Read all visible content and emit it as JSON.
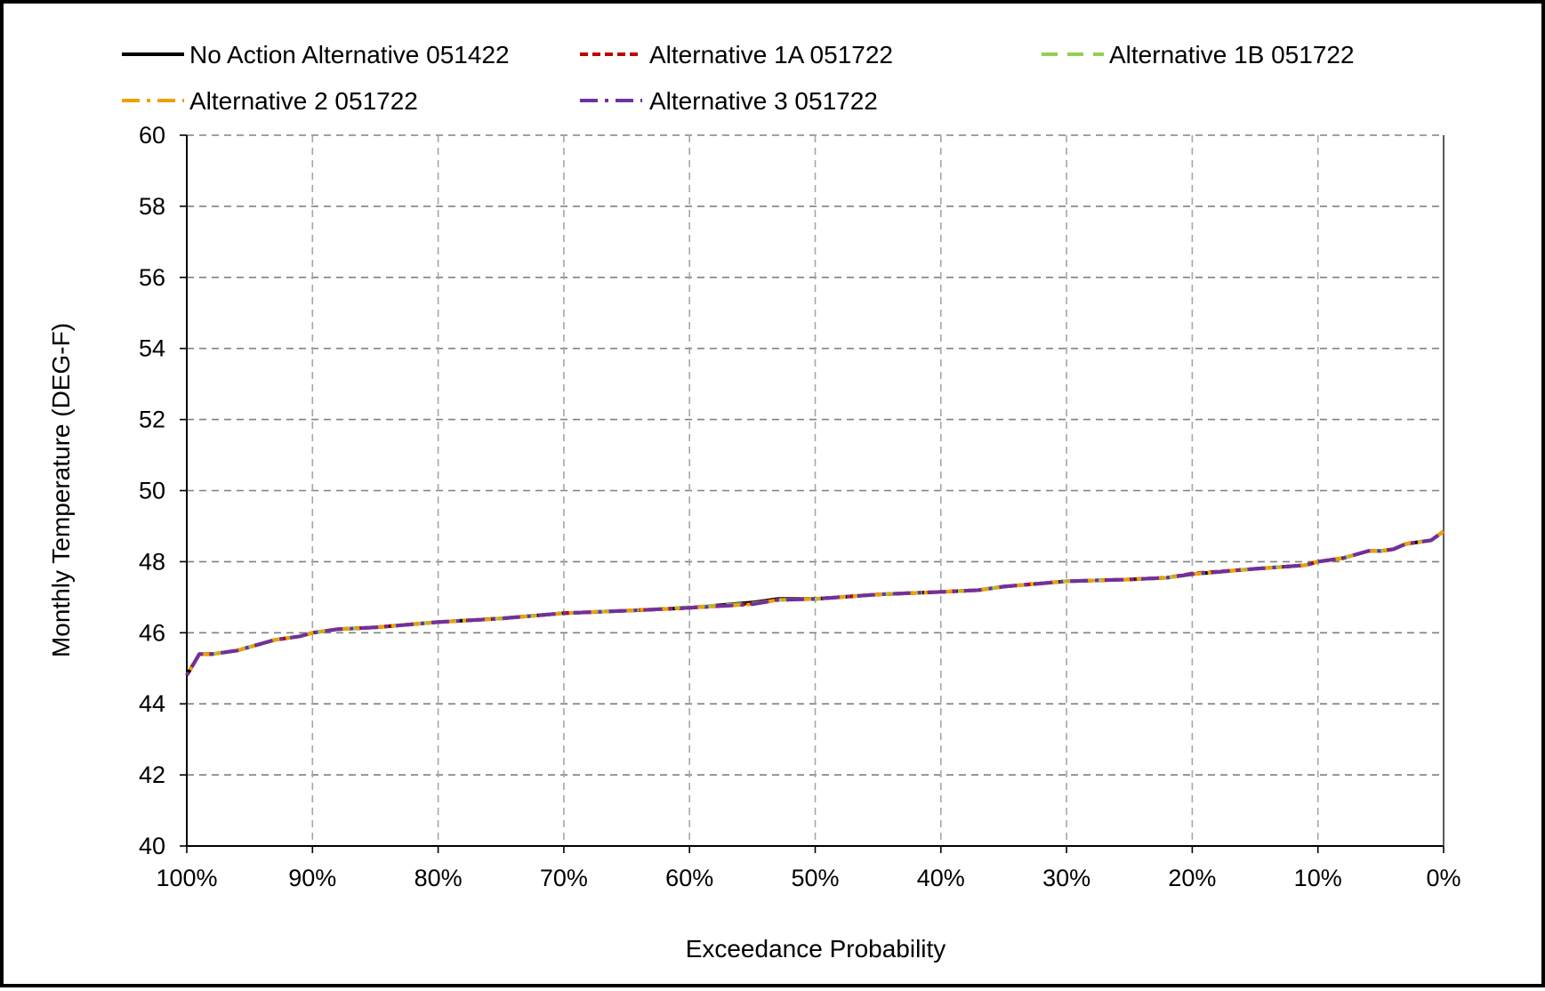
{
  "chart_data": {
    "type": "line",
    "title": "",
    "xlabel": "Exceedance Probability",
    "ylabel": "Monthly Temperature (DEG-F)",
    "xlim": [
      100,
      0
    ],
    "ylim": [
      40,
      60
    ],
    "x_ticks": [
      100,
      90,
      80,
      70,
      60,
      50,
      40,
      30,
      20,
      10,
      0
    ],
    "x_tick_labels": [
      "100%",
      "90%",
      "80%",
      "70%",
      "60%",
      "50%",
      "40%",
      "30%",
      "20%",
      "10%",
      "0%"
    ],
    "y_ticks": [
      40,
      42,
      44,
      46,
      48,
      50,
      52,
      54,
      56,
      58,
      60
    ],
    "y_tick_labels": [
      "40",
      "42",
      "44",
      "46",
      "48",
      "50",
      "52",
      "54",
      "56",
      "58",
      "60"
    ],
    "grid": true,
    "legend_position": "top",
    "x": [
      100,
      99,
      98,
      97,
      96,
      95,
      94,
      93,
      92,
      91,
      90,
      88,
      85,
      80,
      75,
      70,
      65,
      60,
      55,
      53,
      50,
      45,
      40,
      37,
      35,
      30,
      25,
      22,
      20,
      15,
      11,
      10,
      9,
      8,
      7,
      6,
      5,
      4,
      3,
      2,
      1,
      0
    ],
    "series": [
      {
        "name": "No Action Alternative 051422",
        "color": "#000000",
        "dash": "solid",
        "values": [
          44.8,
          45.4,
          45.4,
          45.45,
          45.5,
          45.6,
          45.7,
          45.8,
          45.85,
          45.9,
          46.0,
          46.1,
          46.15,
          46.3,
          46.4,
          46.55,
          46.62,
          46.7,
          46.85,
          46.95,
          46.95,
          47.08,
          47.15,
          47.2,
          47.3,
          47.45,
          47.5,
          47.55,
          47.65,
          47.8,
          47.9,
          48.0,
          48.05,
          48.1,
          48.2,
          48.3,
          48.3,
          48.35,
          48.5,
          48.55,
          48.6,
          48.85
        ]
      },
      {
        "name": "Alternative 1A 051722",
        "color": "#c00000",
        "dash": "short-dash",
        "values": [
          44.8,
          45.4,
          45.4,
          45.45,
          45.5,
          45.6,
          45.7,
          45.8,
          45.85,
          45.9,
          46.0,
          46.1,
          46.15,
          46.3,
          46.4,
          46.55,
          46.62,
          46.7,
          46.82,
          46.93,
          46.95,
          47.08,
          47.15,
          47.2,
          47.3,
          47.45,
          47.5,
          47.55,
          47.67,
          47.8,
          47.9,
          48.0,
          48.05,
          48.1,
          48.2,
          48.3,
          48.3,
          48.35,
          48.5,
          48.55,
          48.6,
          48.85
        ]
      },
      {
        "name": "Alternative 1B 051722",
        "color": "#92d050",
        "dash": "long-dash",
        "values": [
          44.8,
          45.4,
          45.4,
          45.45,
          45.5,
          45.6,
          45.7,
          45.8,
          45.85,
          45.9,
          46.0,
          46.1,
          46.15,
          46.3,
          46.4,
          46.55,
          46.62,
          46.72,
          46.82,
          46.92,
          46.95,
          47.08,
          47.15,
          47.2,
          47.3,
          47.45,
          47.5,
          47.55,
          47.65,
          47.8,
          47.9,
          48.0,
          48.05,
          48.1,
          48.2,
          48.3,
          48.3,
          48.35,
          48.5,
          48.55,
          48.6,
          48.85
        ]
      },
      {
        "name": "Alternative 2 051722",
        "color": "#f0a000",
        "dash": "dash-dot",
        "values": [
          44.8,
          45.4,
          45.4,
          45.45,
          45.5,
          45.6,
          45.7,
          45.8,
          45.85,
          45.9,
          46.0,
          46.1,
          46.15,
          46.3,
          46.4,
          46.55,
          46.62,
          46.7,
          46.8,
          46.92,
          46.95,
          47.08,
          47.15,
          47.2,
          47.3,
          47.45,
          47.5,
          47.55,
          47.65,
          47.8,
          47.9,
          48.0,
          48.05,
          48.1,
          48.2,
          48.3,
          48.3,
          48.35,
          48.5,
          48.55,
          48.6,
          48.85
        ]
      },
      {
        "name": "Alternative 3 051722",
        "color": "#7030a0",
        "dash": "dash-dot",
        "values": [
          44.8,
          45.4,
          45.4,
          45.45,
          45.5,
          45.6,
          45.7,
          45.8,
          45.85,
          45.9,
          46.0,
          46.1,
          46.15,
          46.3,
          46.4,
          46.55,
          46.62,
          46.7,
          46.8,
          46.92,
          46.95,
          47.08,
          47.15,
          47.2,
          47.3,
          47.45,
          47.5,
          47.55,
          47.65,
          47.8,
          47.9,
          48.0,
          48.05,
          48.1,
          48.2,
          48.3,
          48.3,
          48.35,
          48.5,
          48.55,
          48.6,
          48.85
        ]
      }
    ]
  }
}
